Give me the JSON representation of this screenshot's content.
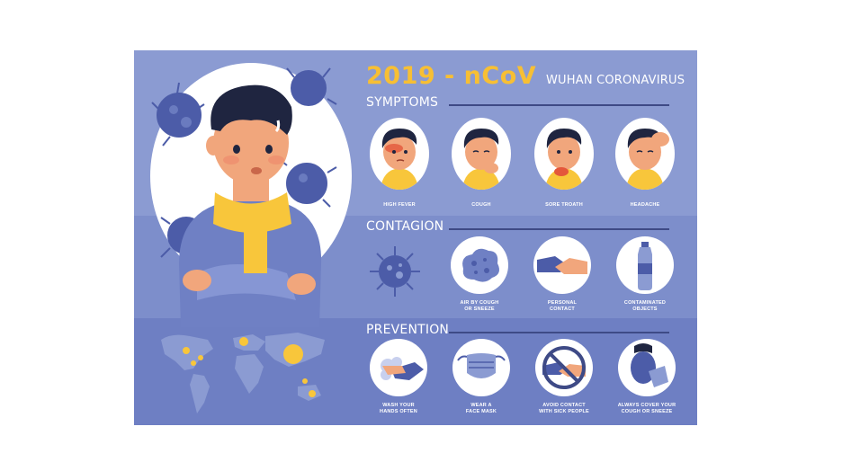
{
  "header": {
    "title_year": "2019 - nCoV",
    "title_sub": "WUHAN CORONAVIRUS"
  },
  "sections": {
    "symptoms": {
      "title": "SYMPTOMS",
      "items": [
        {
          "label": "HIGH FEVER",
          "icon": "fever-face-icon"
        },
        {
          "label": "COUGH",
          "icon": "cough-face-icon"
        },
        {
          "label": "SORE TROATH",
          "icon": "sore-throat-face-icon"
        },
        {
          "label": "HEADACHE",
          "icon": "headache-face-icon"
        }
      ]
    },
    "contagion": {
      "title": "CONTAGION",
      "items": [
        {
          "label_line1": "AIR BY COUGH",
          "label_line2": "OR SNEEZE",
          "icon": "droplets-icon"
        },
        {
          "label_line1": "PERSONAL",
          "label_line2": "CONTACT",
          "icon": "handshake-icon"
        },
        {
          "label_line1": "CONTAMINATED",
          "label_line2": "OBJECTS",
          "icon": "bottle-icon"
        }
      ]
    },
    "prevention": {
      "title": "PREVENTION",
      "items": [
        {
          "label_line1": "WASH YOUR",
          "label_line2": "HANDS OFTEN",
          "icon": "hand-wash-icon"
        },
        {
          "label_line1": "WEAR A",
          "label_line2": "FACE MASK",
          "icon": "face-mask-icon"
        },
        {
          "label_line1": "AVOID CONTACT",
          "label_line2": "WITH SICK PEOPLE",
          "icon": "no-handshake-icon"
        },
        {
          "label_line1": "ALWAYS COVER YOUR",
          "label_line2": "COUGH OR SNEEZE",
          "icon": "cover-cough-icon"
        }
      ]
    }
  },
  "colors": {
    "band_top": "#8b9bd2",
    "band_middle": "#7d8ecb",
    "band_bottom": "#6e7fc3",
    "accent_yellow": "#f7bf34",
    "virus_blue": "#4c5ca8",
    "line_dark": "#3e4a86"
  }
}
